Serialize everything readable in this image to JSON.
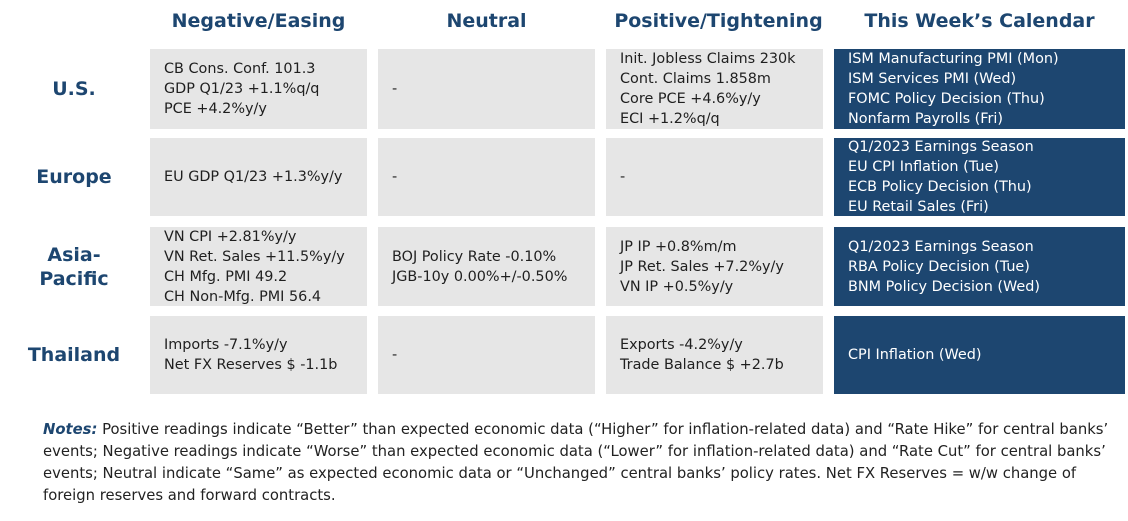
{
  "headers": {
    "negative": "Negative/Easing",
    "neutral": "Neutral",
    "positive": "Positive/Tightening",
    "calendar": "This Week’s Calendar"
  },
  "rows": [
    {
      "region": [
        "U.S."
      ],
      "negative": [
        "CB Cons. Conf. 101.3",
        "GDP Q1/23 +1.1%q/q",
        "PCE +4.2%y/y"
      ],
      "neutral": [
        "-"
      ],
      "positive": [
        "Init. Jobless Claims 230k",
        "Cont. Claims 1.858m",
        "Core PCE +4.6%y/y",
        "ECI +1.2%q/q"
      ],
      "calendar": [
        "ISM Manufacturing PMI (Mon)",
        "ISM Services PMI (Wed)",
        "FOMC Policy Decision (Thu)",
        "Nonfarm Payrolls (Fri)"
      ]
    },
    {
      "region": [
        "Europe"
      ],
      "negative": [
        "EU GDP Q1/23 +1.3%y/y"
      ],
      "neutral": [
        "-"
      ],
      "positive": [
        "-"
      ],
      "calendar": [
        "Q1/2023 Earnings Season",
        "EU CPI Inflation (Tue)",
        "ECB Policy Decision (Thu)",
        "EU Retail Sales (Fri)"
      ]
    },
    {
      "region": [
        "Asia-",
        "Pacific"
      ],
      "negative": [
        "VN CPI +2.81%y/y",
        "VN Ret. Sales +11.5%y/y",
        "CH Mfg. PMI 49.2",
        "CH Non-Mfg. PMI 56.4"
      ],
      "neutral": [
        "BOJ Policy Rate -0.10%",
        "JGB-10y 0.00%+/-0.50%"
      ],
      "positive": [
        "JP IP +0.8%m/m",
        "JP Ret. Sales +7.2%y/y",
        "VN IP +0.5%y/y"
      ],
      "calendar": [
        "Q1/2023 Earnings Season",
        "RBA Policy Decision (Tue)",
        "BNM Policy Decision (Wed)"
      ]
    },
    {
      "region": [
        "Thailand"
      ],
      "negative": [
        "Imports -7.1%y/y",
        "Net FX Reserves $ -1.1b"
      ],
      "neutral": [
        "-"
      ],
      "positive": [
        "Exports -4.2%y/y",
        "Trade Balance $ +2.7b"
      ],
      "calendar": [
        "CPI Inflation (Wed)"
      ]
    }
  ],
  "notes": {
    "label": "Notes:",
    "text": " Positive readings indicate “Better” than expected economic data (“Higher” for inflation-related data) and “Rate Hike” for central banks’ events; Negative readings indicate “Worse” than expected economic data (“Lower” for inflation-related data) and “Rate Cut” for central banks’ events; Neutral indicate “Same” as expected economic data or “Unchanged” central banks’ policy rates. Net FX Reserves = w/w change of foreign reserves and forward contracts."
  },
  "colors": {
    "accent": "#1d4670",
    "cell_bg": "#e6e6e6",
    "calendar_text": "#ffffff"
  }
}
